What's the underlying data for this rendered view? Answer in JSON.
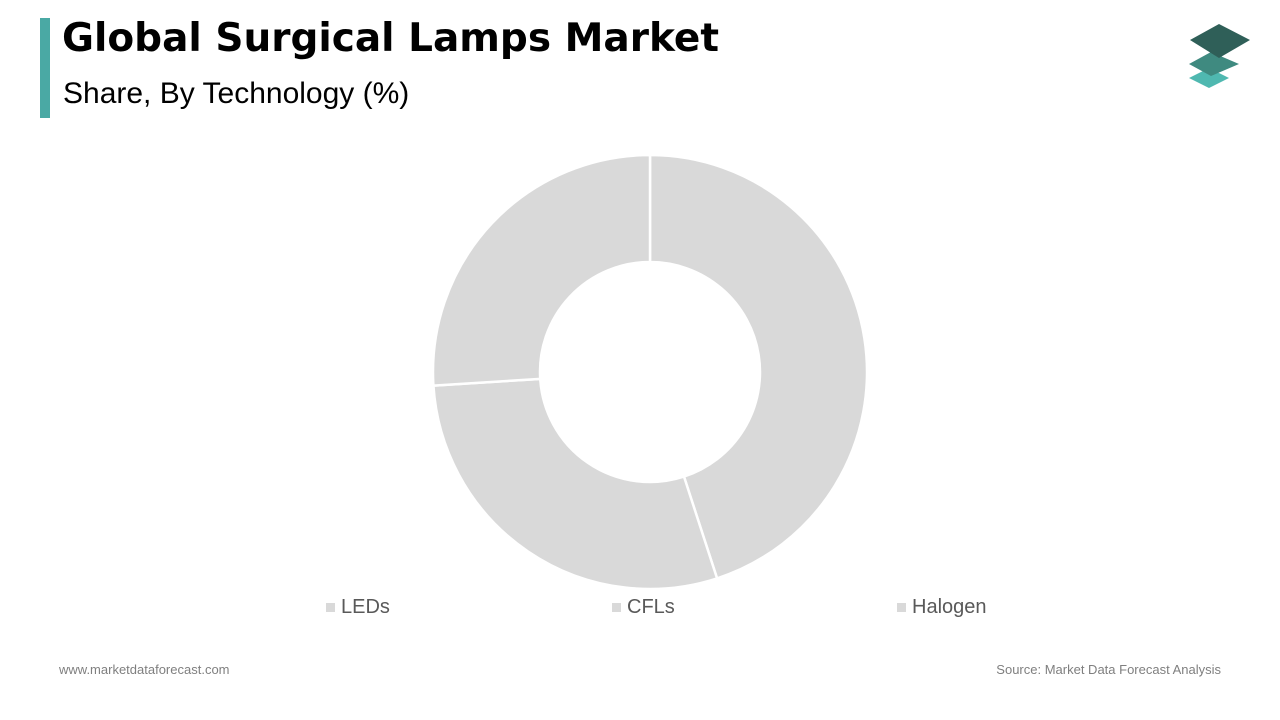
{
  "header": {
    "title": "Global Surgical Lamps Market",
    "subtitle": "Share, By Technology  (%)",
    "accent_color": "#4aa9a4"
  },
  "logo": {
    "icon": "stacked-layers-logo-icon",
    "colors": [
      "#2f5f58",
      "#3f8a80",
      "#4fb8b0"
    ]
  },
  "chart_data": {
    "type": "pie",
    "variant": "donut",
    "title": "Global Surgical Lamps Market",
    "subtitle": "Share, By Technology  (%)",
    "categories": [
      "LEDs",
      "CFLs",
      "Halogen"
    ],
    "values": [
      45,
      29,
      26
    ],
    "colors": [
      "#d9d9d9",
      "#d9d9d9",
      "#d9d9d9"
    ],
    "separator_color": "#ffffff",
    "legend_position": "bottom",
    "data_labels": false
  },
  "footer": {
    "website": "www.marketdataforecast.com",
    "source": "Source: Market Data Forecast Analysis"
  }
}
